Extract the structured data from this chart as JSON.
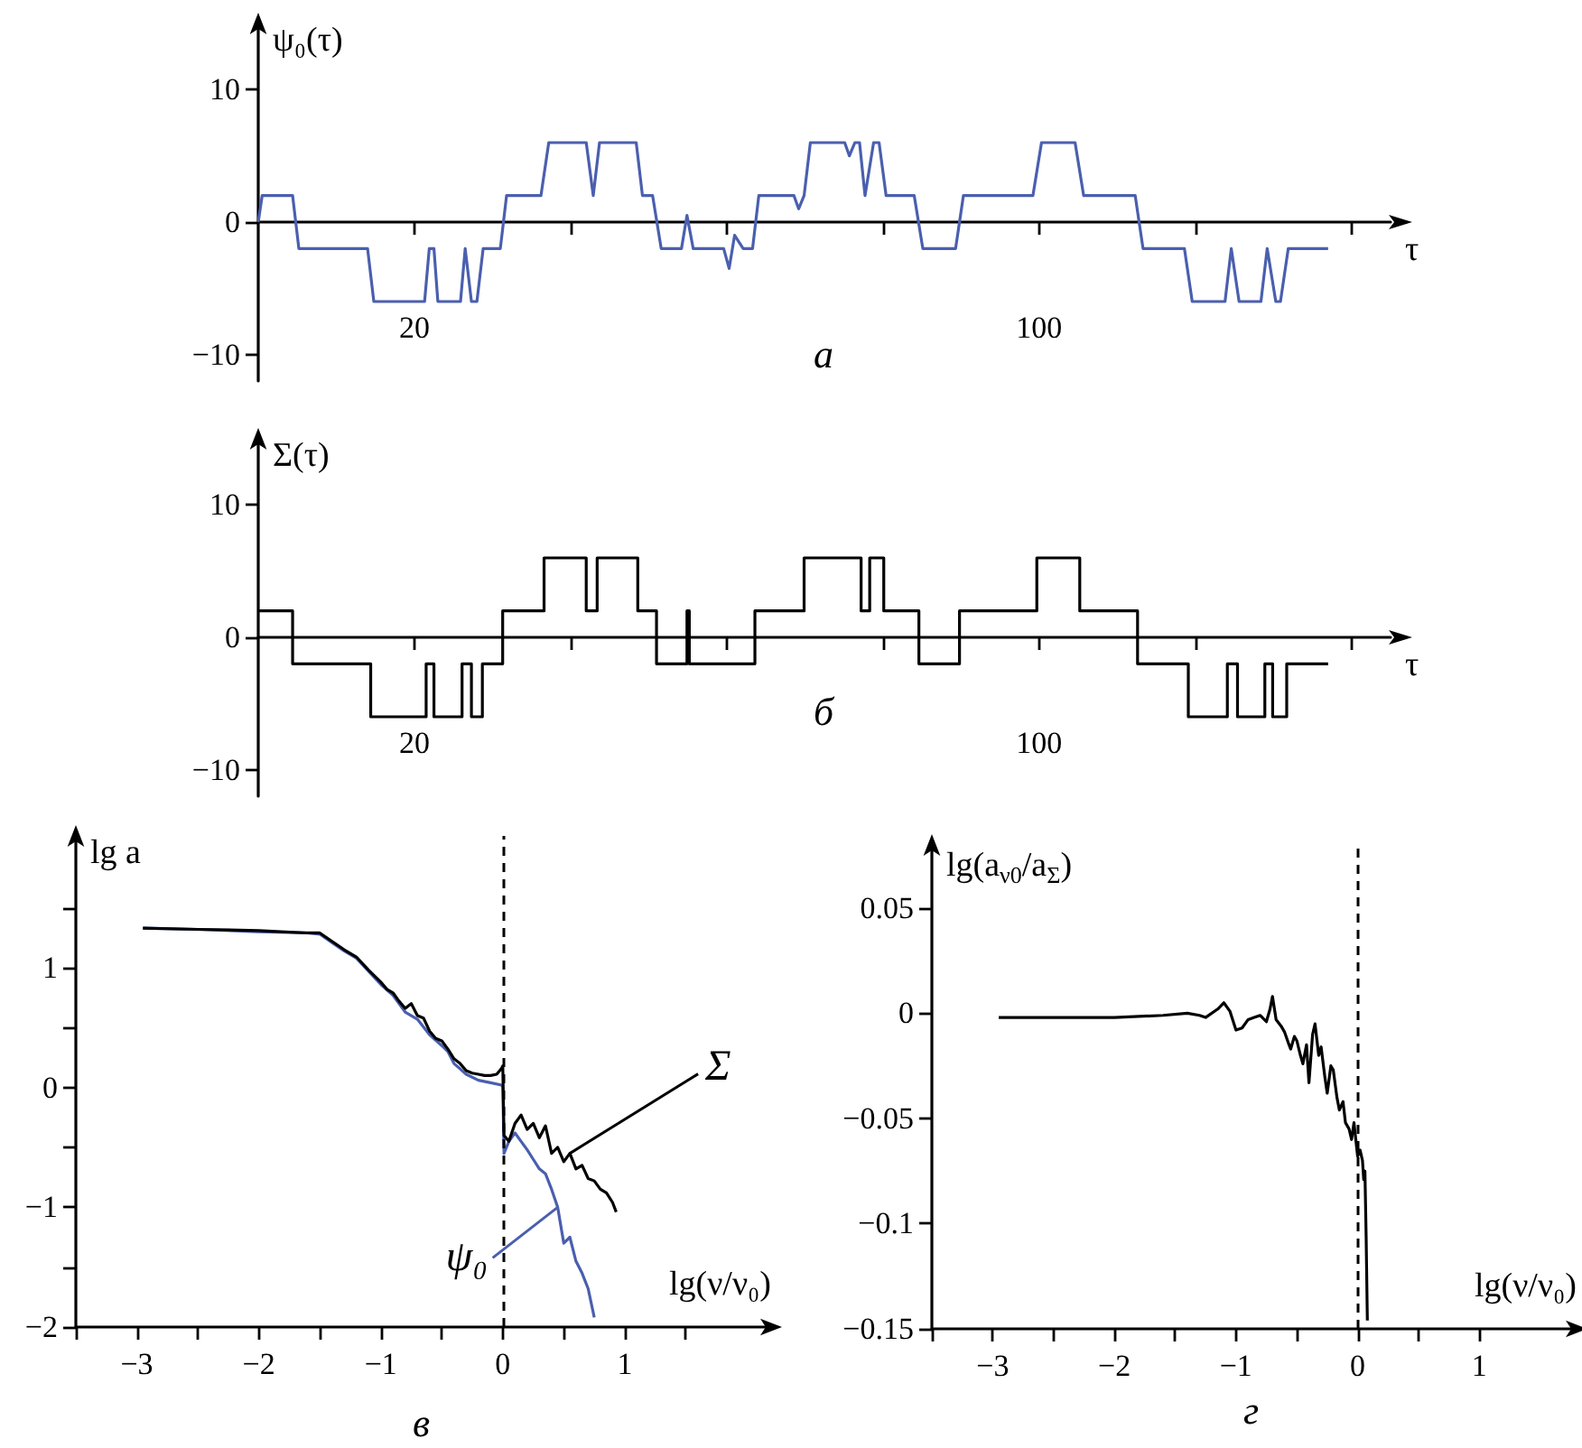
{
  "chart_data": [
    {
      "type": "line",
      "xlabel": "τ",
      "ylabel": "ψ₀(τ)",
      "annotations": [
        "а"
      ],
      "xlim": [
        0,
        145
      ],
      "ylim": [
        -12,
        15
      ],
      "xticks": [
        {
          "value": 20,
          "label": "20"
        },
        {
          "value": 40,
          "label": null
        },
        {
          "value": 60,
          "label": null
        },
        {
          "value": 80,
          "label": null
        },
        {
          "value": 100,
          "label": "100"
        },
        {
          "value": 120,
          "label": null
        },
        {
          "value": 140,
          "label": null
        }
      ],
      "yticks": [
        -10,
        0,
        10
      ],
      "series": [
        {
          "color": "#4a5fae",
          "x": [
            0,
            0.5,
            4.4,
            5.2,
            14,
            14.8,
            21.3,
            21.9,
            22.5,
            23,
            25.9,
            26.5,
            27.3,
            28,
            28.8,
            31,
            31.8,
            36.2,
            37.2,
            42,
            42.9,
            43.7,
            48.4,
            49.2,
            50.5,
            51.6,
            54.2,
            54.9,
            55.7,
            59.6,
            60.3,
            61,
            62.1,
            63.3,
            64.1,
            68.6,
            69.2,
            69.9,
            70.7,
            75.1,
            75.7,
            76.4,
            77,
            77.7,
            78.8,
            79.5,
            80.4,
            84,
            85.1,
            89.3,
            90.3,
            99.2,
            100.3,
            104.6,
            105.7,
            112.3,
            113.3,
            118.6,
            119.6,
            123.8,
            124.6,
            125.6,
            128.4,
            129.2,
            130.3,
            130.9,
            131.9,
            137
          ],
          "values": [
            0,
            2,
            2,
            -2,
            -2,
            -6,
            -6,
            -2,
            -2,
            -6,
            -6,
            -2,
            -6,
            -6,
            -2,
            -2,
            2,
            2,
            6,
            6,
            2,
            6,
            6,
            2,
            2,
            -2,
            -2,
            0.5,
            -2,
            -2,
            -3.5,
            -1,
            -2,
            -2,
            2,
            2,
            1,
            2,
            6,
            6,
            5,
            6,
            6,
            2,
            6,
            6,
            2,
            2,
            -2,
            -2,
            2,
            2,
            6,
            6,
            2,
            2,
            -2,
            -2,
            -6,
            -6,
            -2,
            -6,
            -6,
            -2,
            -6,
            -6,
            -2,
            -2
          ]
        }
      ]
    },
    {
      "type": "step",
      "xlabel": "τ",
      "ylabel": "Σ(τ)",
      "annotations": [
        "б"
      ],
      "xlim": [
        0,
        145
      ],
      "ylim": [
        -12,
        15
      ],
      "xticks": [
        {
          "value": 20,
          "label": "20"
        },
        {
          "value": 40,
          "label": null
        },
        {
          "value": 60,
          "label": null
        },
        {
          "value": 80,
          "label": null
        },
        {
          "value": 100,
          "label": "100"
        },
        {
          "value": 120,
          "label": null
        },
        {
          "value": 140,
          "label": null
        }
      ],
      "yticks": [
        -10,
        0,
        10
      ],
      "series": [
        {
          "color": "#000000",
          "x": [
            0,
            4.4,
            14.4,
            21.5,
            22.5,
            26.1,
            27.3,
            28.7,
            31.3,
            36.6,
            42,
            43.4,
            48.6,
            51,
            54.9,
            55.2,
            63.6,
            69.9,
            77.2,
            78.3,
            80.1,
            84.6,
            89.8,
            99.7,
            105.2,
            112.6,
            119.1,
            124.1,
            125.4,
            128.9,
            129.9,
            131.7,
            137
          ],
          "values": [
            2,
            -2,
            -6,
            -2,
            -6,
            -2,
            -6,
            -2,
            2,
            6,
            2,
            6,
            2,
            -2,
            2,
            -2,
            2,
            6,
            2,
            6,
            2,
            -2,
            2,
            6,
            2,
            -2,
            -6,
            -2,
            -6,
            -2,
            -6,
            -2,
            -2
          ]
        }
      ]
    },
    {
      "type": "line",
      "xlabel": "lg(ν/ν₀)",
      "ylabel": "lg a",
      "annotations": [
        "в"
      ],
      "xlim": [
        -3.5,
        2.2
      ],
      "ylim": [
        -2,
        2.1
      ],
      "xticks": [
        {
          "value": -3.5,
          "label": null
        },
        -3,
        {
          "value": -2.5,
          "label": null
        },
        -2,
        {
          "value": -1.5,
          "label": null
        },
        -1,
        {
          "value": -0.5,
          "label": null
        },
        0,
        {
          "value": 0.5,
          "label": null
        },
        1,
        {
          "value": 1.5,
          "label": null
        }
      ],
      "yticks": [
        -2,
        {
          "value": -1.5,
          "label": null
        },
        -1,
        {
          "value": -0.5,
          "label": null
        },
        0,
        {
          "value": 0.5,
          "label": null
        },
        1,
        {
          "value": 1.5,
          "label": null
        }
      ],
      "ref_lines": [
        {
          "axis": "x",
          "value": 0,
          "line_style": "dashed",
          "color": "#000000"
        }
      ],
      "series": [
        {
          "name": "ψ₀",
          "color": "#4a5fae",
          "x": [
            -2.95,
            -2.5,
            -2,
            -1.6,
            -1.5,
            -1.4,
            -1.3,
            -1.2,
            -1.1,
            -1.0,
            -0.9,
            -0.8,
            -0.7,
            -0.6,
            -0.5,
            -0.45,
            -0.4,
            -0.3,
            -0.2,
            -0.1,
            -0.01,
            0,
            0.01,
            0.05,
            0.1,
            0.15,
            0.2,
            0.25,
            0.3,
            0.35,
            0.4,
            0.45,
            0.5,
            0.55,
            0.6,
            0.65,
            0.7,
            0.75
          ],
          "values": [
            1.33,
            1.32,
            1.3,
            1.29,
            1.28,
            1.21,
            1.14,
            1.08,
            0.97,
            0.86,
            0.77,
            0.63,
            0.57,
            0.44,
            0.35,
            0.3,
            0.2,
            0.11,
            0.06,
            0.04,
            0.02,
            0,
            -0.55,
            -0.45,
            -0.38,
            -0.45,
            -0.52,
            -0.6,
            -0.68,
            -0.72,
            -0.85,
            -1.0,
            -1.3,
            -1.25,
            -1.45,
            -1.55,
            -1.68,
            -1.92
          ]
        },
        {
          "name": "Σ",
          "color": "#000000",
          "x": [
            -2.95,
            -2.5,
            -2,
            -1.6,
            -1.5,
            -1.4,
            -1.3,
            -1.2,
            -1.1,
            -1.0,
            -0.95,
            -0.9,
            -0.85,
            -0.8,
            -0.75,
            -0.7,
            -0.65,
            -0.6,
            -0.55,
            -0.5,
            -0.45,
            -0.4,
            -0.35,
            -0.3,
            -0.25,
            -0.2,
            -0.15,
            -0.1,
            -0.05,
            -0.01,
            0,
            0.01,
            0.05,
            0.1,
            0.15,
            0.2,
            0.25,
            0.3,
            0.35,
            0.4,
            0.45,
            0.5,
            0.55,
            0.6,
            0.65,
            0.7,
            0.75,
            0.8,
            0.85,
            0.9,
            0.93
          ],
          "values": [
            1.33,
            1.32,
            1.31,
            1.29,
            1.29,
            1.22,
            1.15,
            1.09,
            0.98,
            0.88,
            0.82,
            0.79,
            0.72,
            0.66,
            0.7,
            0.6,
            0.58,
            0.47,
            0.41,
            0.39,
            0.32,
            0.24,
            0.2,
            0.14,
            0.12,
            0.11,
            0.1,
            0.1,
            0.11,
            0.16,
            0.18,
            -0.4,
            -0.45,
            -0.3,
            -0.23,
            -0.35,
            -0.3,
            -0.42,
            -0.32,
            -0.55,
            -0.5,
            -0.62,
            -0.55,
            -0.68,
            -0.65,
            -0.76,
            -0.78,
            -0.85,
            -0.88,
            -0.96,
            -1.04
          ]
        }
      ]
    },
    {
      "type": "line",
      "xlabel": "lg(ν/ν₀)",
      "ylabel": "lg(a$_{ν0}$/a$_{Σ}$)",
      "annotations": [
        "г"
      ],
      "xlim": [
        -3.5,
        1.8
      ],
      "ylim": [
        -0.15,
        0.08
      ],
      "xticks": [
        {
          "value": -3.5,
          "label": null
        },
        -3,
        {
          "value": -2.5,
          "label": null
        },
        -2,
        {
          "value": -1.5,
          "label": null
        },
        -1,
        {
          "value": -0.5,
          "label": null
        },
        0,
        {
          "value": 0.5,
          "label": null
        },
        1
      ],
      "yticks": [
        -0.15,
        -0.1,
        -0.05,
        0,
        0.05
      ],
      "ref_lines": [
        {
          "axis": "x",
          "value": 0,
          "line_style": "dashed",
          "color": "#000000"
        }
      ],
      "series": [
        {
          "color": "#000000",
          "x": [
            -2.95,
            -2.5,
            -2,
            -1.6,
            -1.4,
            -1.3,
            -1.25,
            -1.15,
            -1.1,
            -1.05,
            -1.0,
            -0.95,
            -0.9,
            -0.85,
            -0.8,
            -0.75,
            -0.72,
            -0.7,
            -0.67,
            -0.63,
            -0.6,
            -0.57,
            -0.55,
            -0.52,
            -0.5,
            -0.47,
            -0.45,
            -0.42,
            -0.4,
            -0.37,
            -0.35,
            -0.32,
            -0.3,
            -0.27,
            -0.25,
            -0.22,
            -0.2,
            -0.17,
            -0.15,
            -0.12,
            -0.1,
            -0.07,
            -0.05,
            -0.03,
            0,
            0.02,
            0.04,
            0.05,
            0.06,
            0.07,
            0.08
          ],
          "values": [
            -0.002,
            -0.002,
            -0.002,
            -0.001,
            0,
            -0.001,
            -0.002,
            0.002,
            0.005,
            0.001,
            -0.008,
            -0.007,
            -0.003,
            -0.002,
            -0.001,
            -0.004,
            0.002,
            0.008,
            -0.003,
            -0.006,
            -0.009,
            -0.014,
            -0.017,
            -0.011,
            -0.013,
            -0.02,
            -0.024,
            -0.015,
            -0.033,
            -0.01,
            -0.005,
            -0.02,
            -0.016,
            -0.03,
            -0.038,
            -0.025,
            -0.027,
            -0.04,
            -0.046,
            -0.042,
            -0.052,
            -0.055,
            -0.06,
            -0.052,
            -0.068,
            -0.065,
            -0.07,
            -0.079,
            -0.075,
            -0.106,
            -0.146
          ]
        }
      ]
    }
  ]
}
